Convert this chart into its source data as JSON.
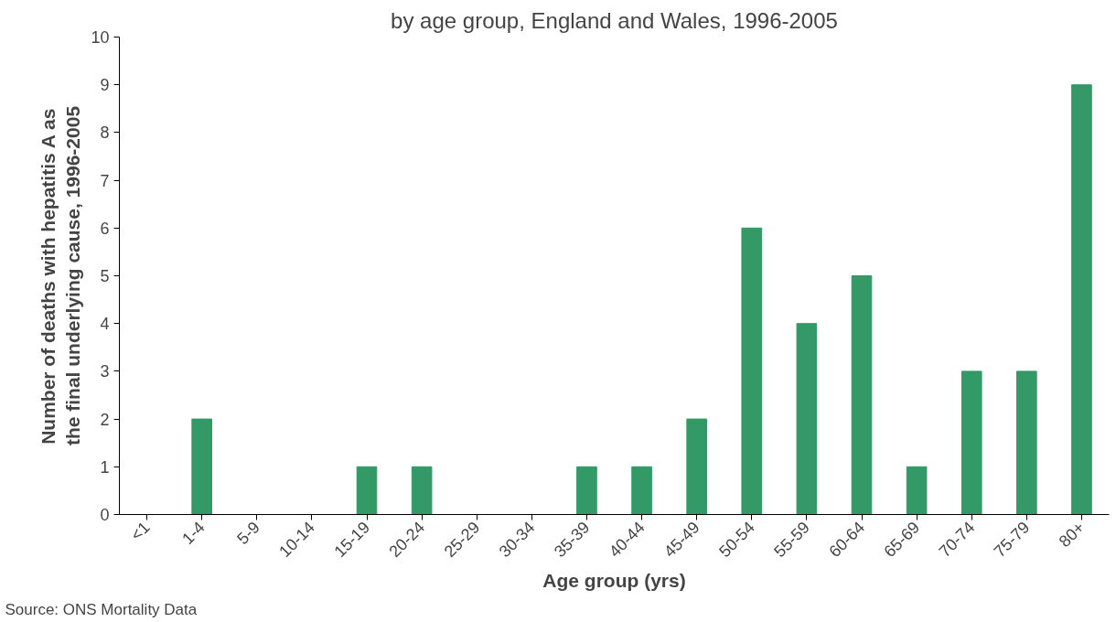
{
  "chart_data": {
    "type": "bar",
    "title": "by age group, England and Wales, 1996-2005",
    "xlabel": "Age group (yrs)",
    "ylabel": "Number of deaths with hepatitis A as\nthe final underlying cause, 1996-2005",
    "categories": [
      "<1",
      "1-4",
      "5-9",
      "10-14",
      "15-19",
      "20-24",
      "25-29",
      "30-34",
      "35-39",
      "40-44",
      "45-49",
      "50-54",
      "55-59",
      "60-64",
      "65-69",
      "70-74",
      "75-79",
      "80+"
    ],
    "values": [
      0,
      2,
      0,
      0,
      1,
      1,
      0,
      0,
      1,
      1,
      2,
      6,
      4,
      5,
      1,
      3,
      3,
      9
    ],
    "color": "#339966",
    "ylim": [
      0,
      10
    ],
    "yticks": [
      0,
      1,
      2,
      3,
      4,
      5,
      6,
      7,
      8,
      9,
      10
    ],
    "grid": false,
    "annotations": [
      "Source: ONS Mortality Data"
    ]
  }
}
